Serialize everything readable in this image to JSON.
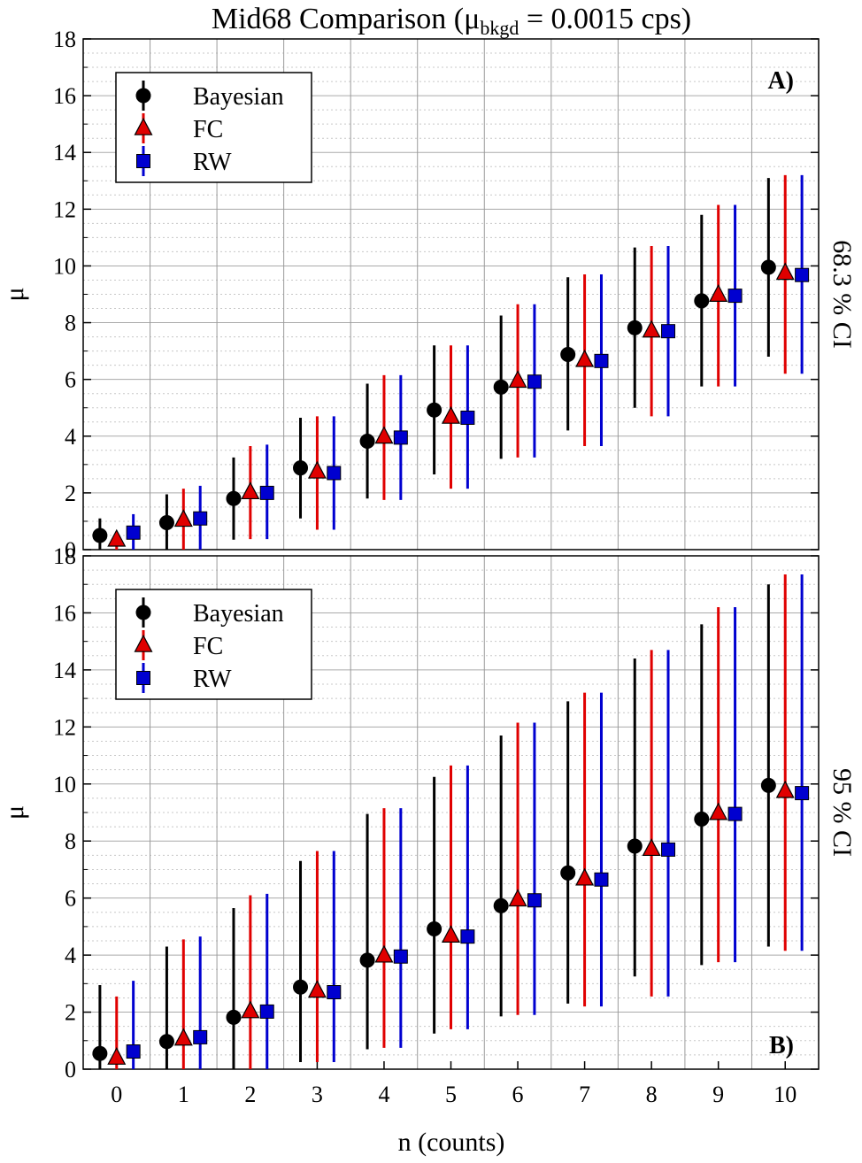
{
  "figure": {
    "title_prefix": "Mid68 Comparison (μ",
    "title_subscript": "bkgd",
    "title_suffix": " = 0.0015 cps)",
    "xlabel": "n (counts)"
  },
  "colors": {
    "Bayesian": "#000000",
    "FC": "#e00000",
    "RW": "#0000d0"
  },
  "chart_data": [
    {
      "type": "scatter",
      "panel_label": "A)",
      "side_label": "68.3 % CI",
      "ylabel": "μ",
      "xlim": [
        -0.5,
        10.5
      ],
      "ylim": [
        0,
        18
      ],
      "x_ticks": [
        0,
        1,
        2,
        3,
        4,
        5,
        6,
        7,
        8,
        9,
        10
      ],
      "y_ticks": [
        0,
        2,
        4,
        6,
        8,
        10,
        12,
        14,
        16,
        18
      ],
      "grid": "on",
      "legend_position": "top-left",
      "series": [
        {
          "name": "Bayesian",
          "marker": "circle",
          "x": [
            0,
            1,
            2,
            3,
            4,
            5,
            6,
            7,
            8,
            9,
            10
          ],
          "y": [
            0.5,
            0.95,
            1.8,
            2.88,
            3.82,
            4.92,
            5.73,
            6.88,
            7.82,
            8.77,
            9.95
          ],
          "lower": [
            0,
            0,
            0.35,
            1.1,
            1.8,
            2.65,
            3.2,
            4.2,
            5.0,
            5.75,
            6.8
          ],
          "upper": [
            1.1,
            1.95,
            3.25,
            4.65,
            5.85,
            7.2,
            8.25,
            9.6,
            10.65,
            11.8,
            13.1
          ]
        },
        {
          "name": "FC",
          "marker": "triangle",
          "x": [
            0,
            1,
            2,
            3,
            4,
            5,
            6,
            7,
            8,
            9,
            10
          ],
          "y": [
            0.35,
            1.05,
            2.02,
            2.75,
            3.98,
            4.68,
            5.95,
            6.68,
            7.72,
            8.98,
            9.75
          ],
          "lower": [
            0,
            0,
            0.37,
            0.7,
            1.75,
            2.15,
            3.25,
            3.65,
            4.7,
            5.75,
            6.2
          ],
          "upper": [
            0.6,
            2.15,
            3.65,
            4.7,
            6.15,
            7.2,
            8.65,
            9.7,
            10.7,
            12.15,
            13.2
          ]
        },
        {
          "name": "RW",
          "marker": "square",
          "x": [
            0,
            1,
            2,
            3,
            4,
            5,
            6,
            7,
            8,
            9,
            10
          ],
          "y": [
            0.6,
            1.1,
            2.0,
            2.7,
            3.95,
            4.65,
            5.92,
            6.65,
            7.7,
            8.95,
            9.68
          ],
          "lower": [
            0,
            0,
            0.37,
            0.7,
            1.75,
            2.15,
            3.25,
            3.65,
            4.7,
            5.75,
            6.2
          ],
          "upper": [
            1.25,
            2.25,
            3.7,
            4.7,
            6.15,
            7.2,
            8.65,
            9.7,
            10.7,
            12.15,
            13.2
          ]
        }
      ]
    },
    {
      "type": "scatter",
      "panel_label": "B)",
      "side_label": "95 % CI",
      "ylabel": "μ",
      "xlim": [
        -0.5,
        10.5
      ],
      "ylim": [
        0,
        18
      ],
      "x_ticks": [
        0,
        1,
        2,
        3,
        4,
        5,
        6,
        7,
        8,
        9,
        10
      ],
      "y_ticks": [
        0,
        2,
        4,
        6,
        8,
        10,
        12,
        14,
        16,
        18
      ],
      "grid": "on",
      "legend_position": "top-left",
      "series": [
        {
          "name": "Bayesian",
          "marker": "circle",
          "x": [
            0,
            1,
            2,
            3,
            4,
            5,
            6,
            7,
            8,
            9,
            10
          ],
          "y": [
            0.55,
            0.97,
            1.82,
            2.88,
            3.82,
            4.92,
            5.73,
            6.88,
            7.82,
            8.77,
            9.95
          ],
          "lower": [
            0,
            0,
            0,
            0.25,
            0.7,
            1.25,
            1.85,
            2.3,
            3.25,
            3.65,
            4.3
          ],
          "upper": [
            2.95,
            4.3,
            5.65,
            7.3,
            8.95,
            10.25,
            11.7,
            12.9,
            14.4,
            15.6,
            17.0
          ]
        },
        {
          "name": "FC",
          "marker": "triangle",
          "x": [
            0,
            1,
            2,
            3,
            4,
            5,
            6,
            7,
            8,
            9,
            10
          ],
          "y": [
            0.4,
            1.07,
            2.03,
            2.75,
            3.98,
            4.68,
            5.95,
            6.68,
            7.72,
            8.98,
            9.75
          ],
          "lower": [
            0,
            0,
            0,
            0.25,
            0.75,
            1.4,
            1.9,
            2.2,
            2.55,
            3.75,
            4.15
          ],
          "upper": [
            2.55,
            4.55,
            6.1,
            7.65,
            9.15,
            10.65,
            12.15,
            13.2,
            14.7,
            16.2,
            17.35
          ]
        },
        {
          "name": "RW",
          "marker": "square",
          "x": [
            0,
            1,
            2,
            3,
            4,
            5,
            6,
            7,
            8,
            9,
            10
          ],
          "y": [
            0.62,
            1.12,
            2.02,
            2.7,
            3.95,
            4.65,
            5.92,
            6.65,
            7.7,
            8.95,
            9.68
          ],
          "lower": [
            0,
            0,
            0,
            0.25,
            0.75,
            1.4,
            1.9,
            2.2,
            2.55,
            3.75,
            4.15
          ],
          "upper": [
            3.1,
            4.65,
            6.15,
            7.65,
            9.15,
            10.65,
            12.15,
            13.2,
            14.7,
            16.2,
            17.35
          ]
        }
      ]
    }
  ]
}
